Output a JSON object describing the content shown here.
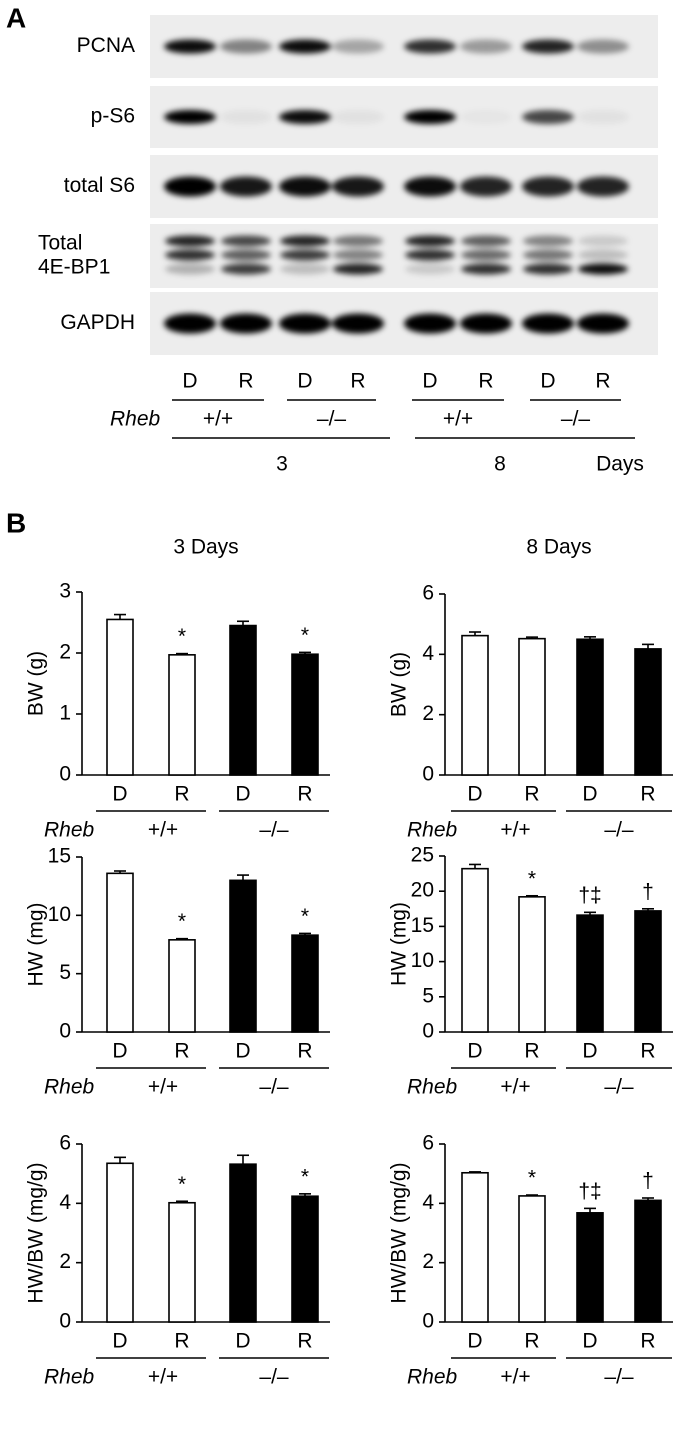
{
  "panel_labels": [
    "A",
    "B"
  ],
  "blot": {
    "rows": [
      "PCNA",
      "p-S6",
      "total S6",
      [
        "Total",
        "4E-BP1"
      ],
      "GAPDH"
    ],
    "lanes": [
      "D",
      "R",
      "D",
      "R",
      "D",
      "R",
      "D",
      "R"
    ],
    "strain_label": "Rheb",
    "genotypes": [
      "+/+",
      "–/–",
      "+/+",
      "–/–"
    ],
    "days": [
      "3",
      "8"
    ],
    "days_unit": "Days"
  },
  "chart_data": [
    {
      "type": "bar",
      "title": "3 Days",
      "y_label": "BW (g)",
      "categories": [
        "D",
        "R",
        "D",
        "R"
      ],
      "values": [
        2.55,
        1.97,
        2.45,
        1.98
      ],
      "errors": [
        0.08,
        0.02,
        0.07,
        0.03
      ],
      "colors": [
        "#ffffff",
        "#ffffff",
        "#000000",
        "#000000"
      ],
      "annotations": [
        null,
        "*",
        null,
        "*"
      ],
      "ylim": [
        0,
        3
      ],
      "yticks": [
        0,
        1,
        2,
        3
      ],
      "strain_label": "Rheb",
      "genotypes": [
        "+/+",
        "–/–"
      ]
    },
    {
      "type": "bar",
      "title": "8 Days",
      "y_label": "BW (g)",
      "categories": [
        "D",
        "R",
        "D",
        "R"
      ],
      "values": [
        4.62,
        4.52,
        4.5,
        4.18
      ],
      "errors": [
        0.12,
        0.05,
        0.08,
        0.15
      ],
      "colors": [
        "#ffffff",
        "#ffffff",
        "#000000",
        "#000000"
      ],
      "annotations": [
        null,
        null,
        null,
        null
      ],
      "ylim": [
        0,
        6
      ],
      "yticks": [
        0,
        2,
        4,
        6
      ],
      "strain_label": "Rheb",
      "genotypes": [
        "+/+",
        "–/–"
      ]
    },
    {
      "type": "bar",
      "y_label": "HW (mg)",
      "categories": [
        "D",
        "R",
        "D",
        "R"
      ],
      "values": [
        13.6,
        7.9,
        13.0,
        8.3
      ],
      "errors": [
        0.2,
        0.1,
        0.45,
        0.15
      ],
      "colors": [
        "#ffffff",
        "#ffffff",
        "#000000",
        "#000000"
      ],
      "annotations": [
        null,
        "*",
        null,
        "*"
      ],
      "ylim": [
        0,
        15
      ],
      "yticks": [
        0,
        5,
        10,
        15
      ],
      "strain_label": "Rheb",
      "genotypes": [
        "+/+",
        "–/–"
      ]
    },
    {
      "type": "bar",
      "y_label": "HW (mg)",
      "categories": [
        "D",
        "R",
        "D",
        "R"
      ],
      "values": [
        23.2,
        19.2,
        16.6,
        17.2
      ],
      "errors": [
        0.6,
        0.15,
        0.4,
        0.3
      ],
      "colors": [
        "#ffffff",
        "#ffffff",
        "#000000",
        "#000000"
      ],
      "annotations": [
        null,
        "*",
        "†‡",
        "†"
      ],
      "ylim": [
        0,
        25
      ],
      "yticks": [
        0,
        5,
        10,
        15,
        20,
        25
      ],
      "strain_label": "Rheb",
      "genotypes": [
        "+/+",
        "–/–"
      ]
    },
    {
      "type": "bar",
      "y_label": "HW/BW (mg/g)",
      "categories": [
        "D",
        "R",
        "D",
        "R"
      ],
      "values": [
        5.35,
        4.02,
        5.32,
        4.24
      ],
      "errors": [
        0.2,
        0.05,
        0.3,
        0.08
      ],
      "colors": [
        "#ffffff",
        "#ffffff",
        "#000000",
        "#000000"
      ],
      "annotations": [
        null,
        "*",
        null,
        "*"
      ],
      "ylim": [
        0,
        6
      ],
      "yticks": [
        0,
        2,
        4,
        6
      ],
      "strain_label": "Rheb",
      "genotypes": [
        "+/+",
        "–/–"
      ]
    },
    {
      "type": "bar",
      "y_label": "HW/BW (mg/g)",
      "categories": [
        "D",
        "R",
        "D",
        "R"
      ],
      "values": [
        5.03,
        4.25,
        3.68,
        4.1
      ],
      "errors": [
        0.03,
        0.03,
        0.15,
        0.08
      ],
      "colors": [
        "#ffffff",
        "#ffffff",
        "#000000",
        "#000000"
      ],
      "annotations": [
        null,
        "*",
        "†‡",
        "†"
      ],
      "ylim": [
        0,
        6
      ],
      "yticks": [
        0,
        2,
        4,
        6
      ],
      "strain_label": "Rheb",
      "genotypes": [
        "+/+",
        "–/–"
      ]
    }
  ]
}
